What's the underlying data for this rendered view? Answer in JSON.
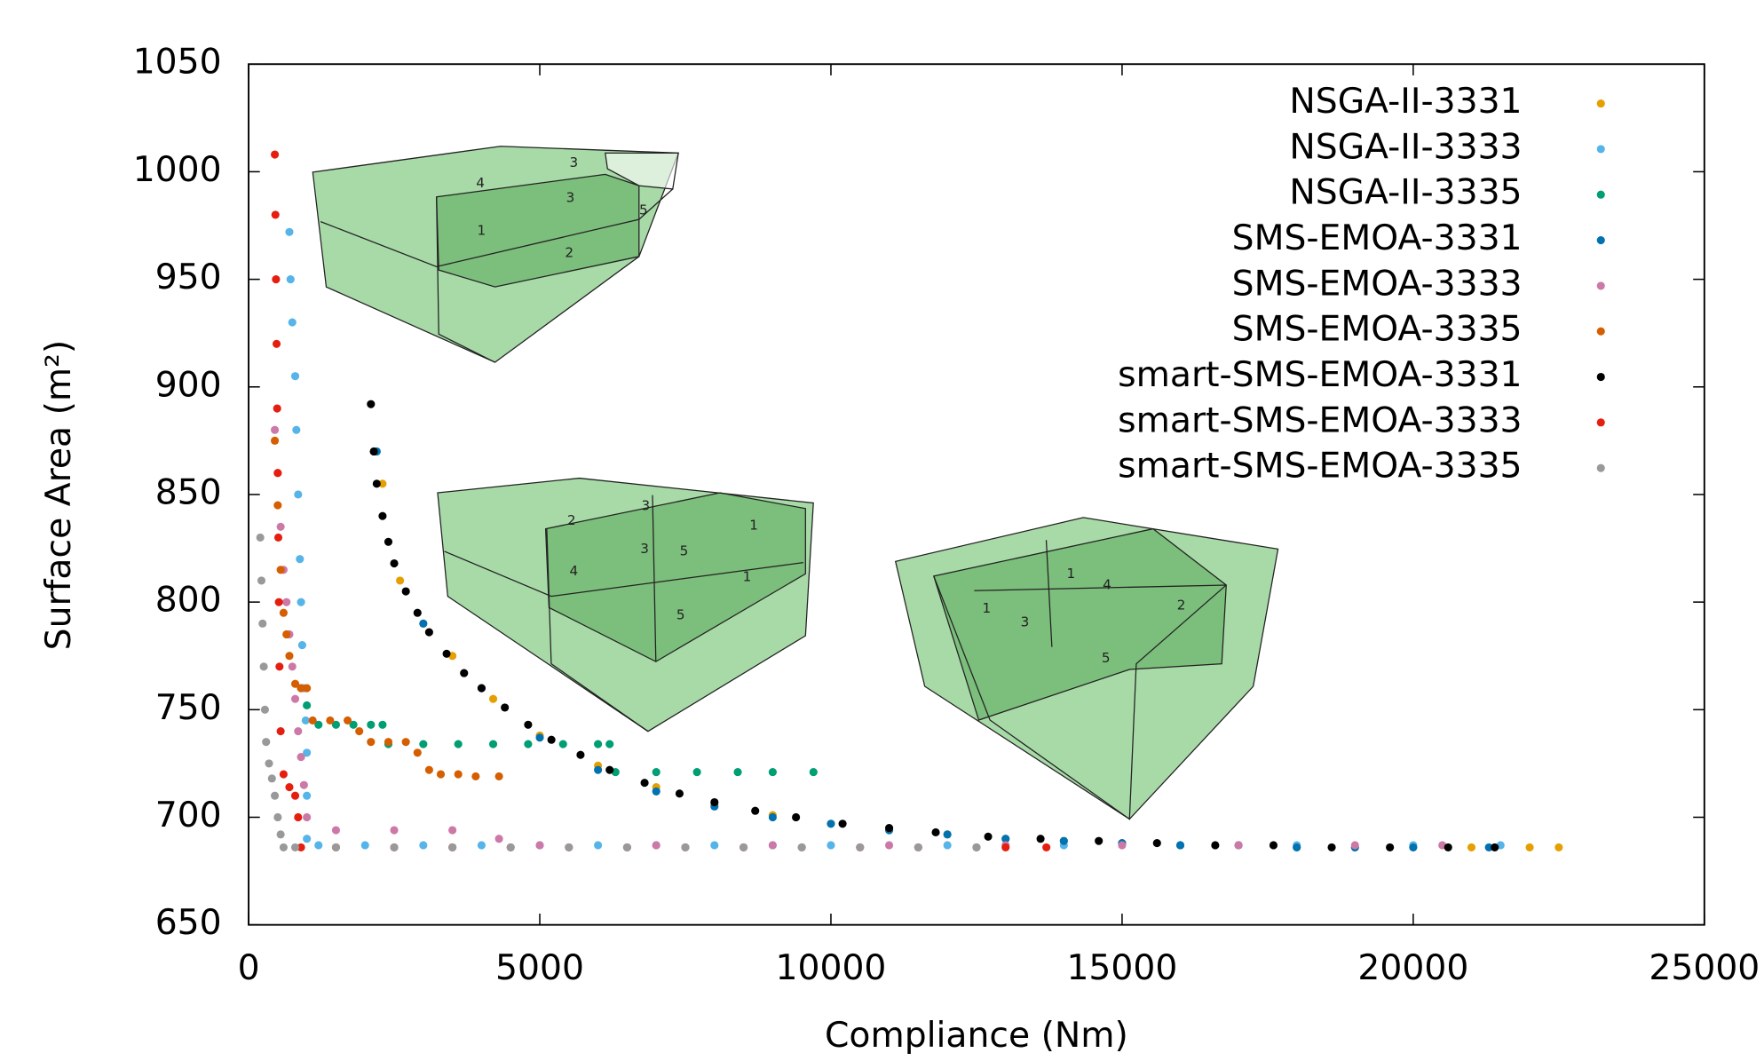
{
  "chart_data": {
    "type": "scatter",
    "x_label": "Compliance (Nm)",
    "y_label": "Surface Area (m²)",
    "xlim": [
      0,
      25000
    ],
    "xticks": [
      0,
      5000,
      10000,
      15000,
      20000,
      25000
    ],
    "ylim": [
      650,
      1050
    ],
    "yticks": [
      650,
      700,
      750,
      800,
      850,
      900,
      950,
      1000,
      1050
    ],
    "grid": false,
    "legend": "upper right",
    "series": [
      {
        "name": "NSGA-II-3331",
        "color": "#e69f00",
        "x": [
          2300,
          2600,
          3000,
          3500,
          4200,
          5000,
          6000,
          7000,
          8000,
          9000,
          10000,
          11000,
          12000,
          13000,
          14000,
          15000,
          16000,
          17000,
          18000,
          19000,
          20000,
          21000,
          22000,
          22500
        ],
        "values": [
          855,
          810,
          790,
          775,
          755,
          738,
          724,
          714,
          706,
          701,
          697,
          694,
          692,
          690,
          689,
          688,
          687,
          687,
          686,
          686,
          686,
          686,
          686,
          686
        ]
      },
      {
        "name": "NSGA-II-3333",
        "color": "#56b4e9",
        "x": [
          700,
          720,
          750,
          800,
          820,
          850,
          880,
          900,
          920,
          950,
          980,
          1000,
          1000,
          1000,
          1200,
          2000,
          3000,
          4000,
          5000,
          6000,
          7000,
          8000,
          9000,
          10000,
          12000,
          14000,
          16000,
          18000,
          20000,
          21500
        ],
        "values": [
          972,
          950,
          930,
          905,
          880,
          850,
          820,
          800,
          780,
          760,
          745,
          730,
          710,
          690,
          687,
          687,
          687,
          687,
          687,
          687,
          687,
          687,
          687,
          687,
          687,
          687,
          687,
          687,
          687,
          687
        ]
      },
      {
        "name": "NSGA-II-3335",
        "color": "#009e73",
        "x": [
          900,
          1000,
          1200,
          1500,
          1800,
          2100,
          2300,
          2400,
          3000,
          3600,
          4200,
          4800,
          5400,
          6000,
          6200,
          6300,
          7000,
          7700,
          8400,
          9000,
          9700
        ],
        "values": [
          760,
          752,
          743,
          743,
          743,
          743,
          743,
          734,
          734,
          734,
          734,
          734,
          734,
          734,
          734,
          721,
          721,
          721,
          721,
          721,
          721
        ]
      },
      {
        "name": "SMS-EMOA-3331",
        "color": "#0072b2",
        "x": [
          2200,
          3000,
          4000,
          5000,
          6000,
          7000,
          8000,
          9000,
          10000,
          11000,
          12000,
          13000,
          14000,
          15000,
          16000,
          17000,
          18000,
          19000,
          20000,
          21300
        ],
        "values": [
          870,
          790,
          760,
          737,
          722,
          712,
          705,
          700,
          697,
          694,
          692,
          690,
          689,
          688,
          687,
          687,
          686,
          686,
          686,
          686
        ]
      },
      {
        "name": "SMS-EMOA-3333",
        "color": "#cc79a7",
        "x": [
          450,
          500,
          550,
          600,
          650,
          700,
          750,
          800,
          850,
          900,
          950,
          1000,
          1500,
          2500,
          3500,
          4300,
          5000,
          7000,
          9000,
          11000,
          13000,
          15000,
          17000,
          19000,
          20500
        ],
        "values": [
          880,
          860,
          835,
          815,
          800,
          785,
          770,
          755,
          740,
          728,
          715,
          700,
          694,
          694,
          694,
          690,
          687,
          687,
          687,
          687,
          687,
          687,
          687,
          687,
          687
        ]
      },
      {
        "name": "SMS-EMOA-3335",
        "color": "#d55e00",
        "x": [
          450,
          500,
          550,
          600,
          650,
          700,
          800,
          900,
          1000,
          1100,
          1400,
          1700,
          1900,
          2100,
          2400,
          2700,
          2900,
          3100,
          3300,
          3600,
          3900,
          4300
        ],
        "values": [
          875,
          845,
          815,
          795,
          785,
          775,
          762,
          760,
          760,
          745,
          745,
          745,
          740,
          735,
          735,
          735,
          730,
          722,
          720,
          720,
          719,
          719
        ]
      },
      {
        "name": "smart-SMS-EMOA-3331",
        "color": "#000000",
        "x": [
          2100,
          2150,
          2200,
          2300,
          2400,
          2500,
          2700,
          2900,
          3100,
          3400,
          3700,
          4000,
          4400,
          4800,
          5200,
          5700,
          6200,
          6800,
          7400,
          8000,
          8700,
          9400,
          10200,
          11000,
          11800,
          12700,
          13600,
          14600,
          15600,
          16600,
          17600,
          18600,
          19600,
          20600,
          21400
        ],
        "values": [
          892,
          870,
          855,
          840,
          828,
          818,
          805,
          795,
          786,
          776,
          767,
          760,
          751,
          743,
          736,
          729,
          722,
          716,
          711,
          707,
          703,
          700,
          697,
          695,
          693,
          691,
          690,
          689,
          688,
          687,
          687,
          686,
          686,
          686,
          686
        ]
      },
      {
        "name": "smart-SMS-EMOA-3333",
        "color": "#e51e10",
        "x": [
          450,
          460,
          470,
          480,
          490,
          500,
          510,
          520,
          530,
          550,
          600,
          700,
          800,
          850,
          900,
          1500,
          2500,
          3500,
          4500,
          5500,
          6500,
          7500,
          8500,
          9500,
          10500,
          11500,
          12500,
          13000,
          13700
        ],
        "values": [
          1008,
          980,
          950,
          920,
          890,
          860,
          830,
          800,
          770,
          740,
          720,
          714,
          710,
          700,
          686,
          686,
          686,
          686,
          686,
          686,
          686,
          686,
          686,
          686,
          686,
          686,
          686,
          686,
          686
        ]
      },
      {
        "name": "smart-SMS-EMOA-3335",
        "color": "#999999",
        "x": [
          200,
          220,
          240,
          260,
          280,
          300,
          350,
          400,
          450,
          500,
          550,
          600,
          800,
          1500,
          2500,
          3500,
          4500,
          5500,
          6500,
          7500,
          8500,
          9500,
          10500,
          11500,
          12500
        ],
        "values": [
          830,
          810,
          790,
          770,
          750,
          735,
          725,
          718,
          710,
          700,
          692,
          686,
          686,
          686,
          686,
          686,
          686,
          686,
          686,
          686,
          686,
          686,
          686,
          686,
          686
        ]
      }
    ]
  },
  "insets": [
    {
      "labels": [
        "4",
        "3",
        "3",
        "1",
        "5",
        "2"
      ]
    },
    {
      "labels": [
        "2",
        "3",
        "1",
        "3",
        "5",
        "4",
        "1",
        "5"
      ]
    },
    {
      "labels": [
        "1",
        "4",
        "2",
        "1",
        "3",
        "5"
      ]
    }
  ]
}
